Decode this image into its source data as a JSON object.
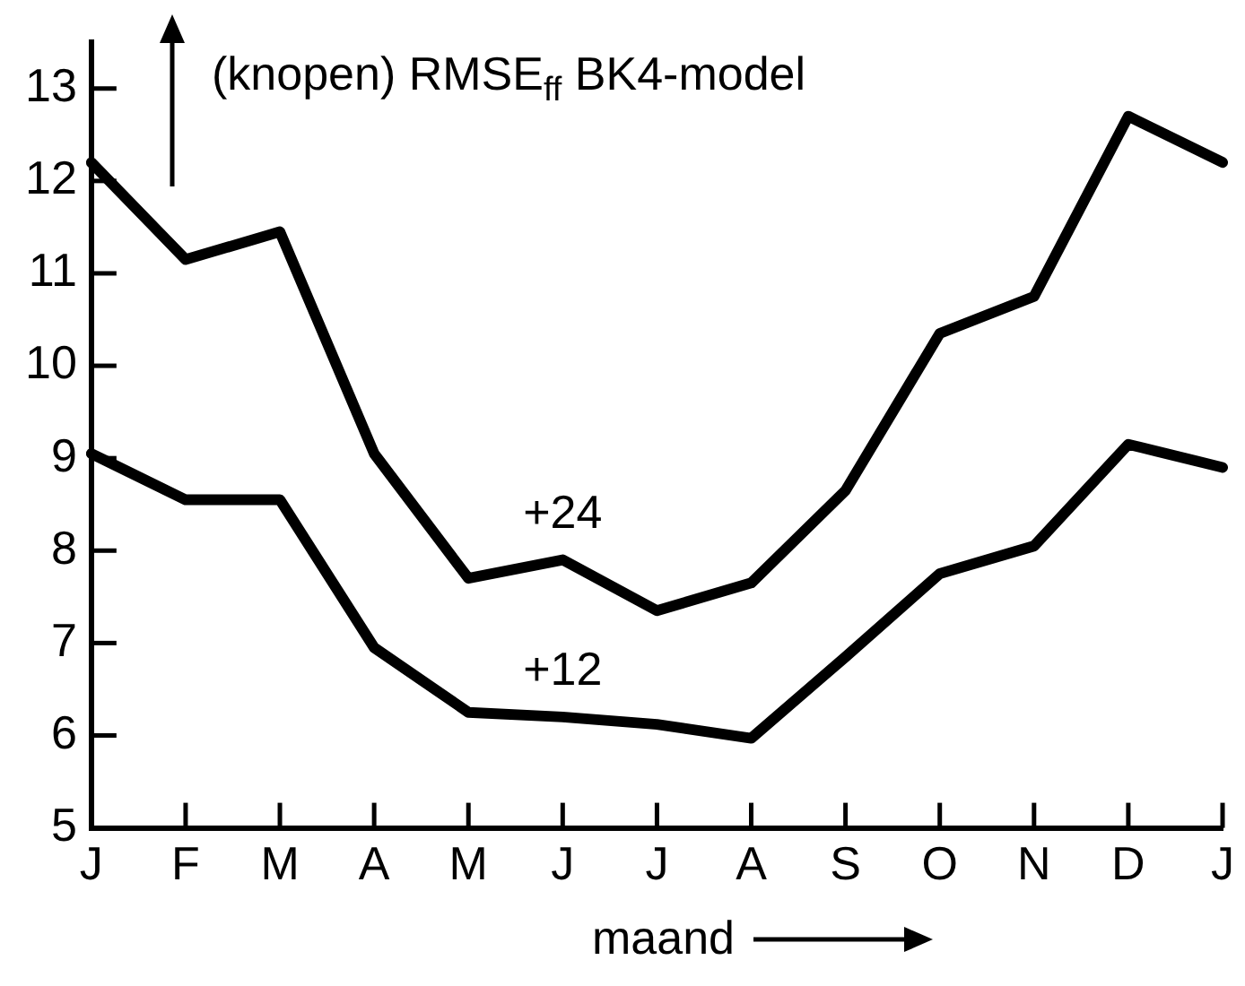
{
  "chart_data": {
    "type": "line",
    "title": "(knopen) RMSE$_{ff}$ BK4-model",
    "xlabel": "maand",
    "categories": [
      "J",
      "F",
      "M",
      "A",
      "M",
      "J",
      "J",
      "A",
      "S",
      "O",
      "N",
      "D",
      "J"
    ],
    "series": [
      {
        "name": "+24",
        "color": "#000000",
        "values": [
          12.2,
          11.15,
          11.45,
          9.05,
          7.7,
          7.9,
          7.35,
          7.65,
          8.65,
          10.35,
          10.75,
          12.7,
          12.2
        ]
      },
      {
        "name": "+12",
        "color": "#000000",
        "values": [
          9.05,
          8.55,
          8.55,
          6.95,
          6.25,
          6.2,
          6.12,
          5.97,
          6.85,
          7.75,
          8.05,
          9.15,
          8.9
        ]
      }
    ],
    "ylim": [
      5,
      13.5
    ],
    "yticks": [
      5,
      6,
      7,
      8,
      9,
      10,
      11,
      12,
      13
    ],
    "grid": false,
    "legend": false,
    "marker": "none",
    "line_style": "solid"
  }
}
